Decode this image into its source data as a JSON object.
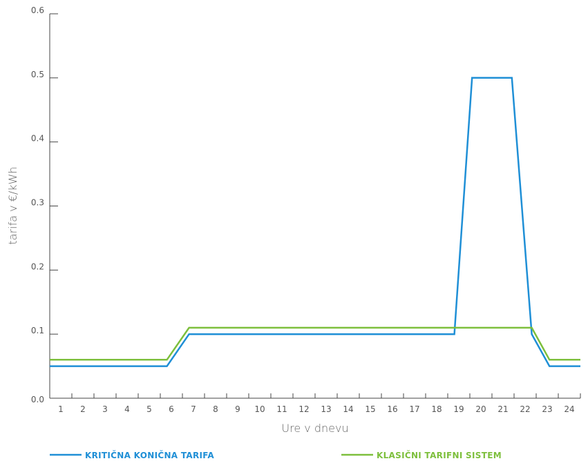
{
  "chart_data": {
    "type": "line",
    "xlabel": "Ure v dnevu",
    "ylabel": "tarifa v €/kWh",
    "xlim": [
      0,
      24
    ],
    "ylim": [
      0,
      0.6
    ],
    "x_ticks": [
      "1",
      "2",
      "3",
      "4",
      "5",
      "6",
      "7",
      "8",
      "9",
      "10",
      "11",
      "12",
      "13",
      "14",
      "15",
      "16",
      "17",
      "18",
      "19",
      "20",
      "21",
      "22",
      "23",
      "24"
    ],
    "y_ticks": [
      "0.0",
      "0.1",
      "0.2",
      "0.3",
      "0.4",
      "0.5",
      "0.6"
    ],
    "grid": false,
    "legend_position": "bottom",
    "series": [
      {
        "name": "KRITIČNA KONIČNA TARIFA",
        "color": "#1f8fd6",
        "points": [
          [
            0,
            0.05
          ],
          [
            5.3,
            0.05
          ],
          [
            6.3,
            0.1
          ],
          [
            18.3,
            0.1
          ],
          [
            19.1,
            0.5
          ],
          [
            20.9,
            0.5
          ],
          [
            21.8,
            0.1
          ],
          [
            22.6,
            0.05
          ],
          [
            24,
            0.05
          ]
        ]
      },
      {
        "name": "KLASIČNI TARIFNI SISTEM",
        "color": "#7dbf3c",
        "points": [
          [
            0,
            0.06
          ],
          [
            5.3,
            0.06
          ],
          [
            6.3,
            0.11
          ],
          [
            21.8,
            0.11
          ],
          [
            22.6,
            0.06
          ],
          [
            24,
            0.06
          ]
        ]
      }
    ]
  }
}
